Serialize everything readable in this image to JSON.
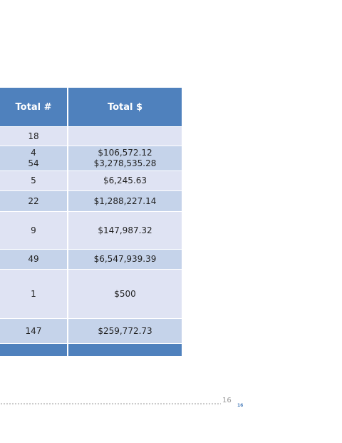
{
  "table": {
    "header": [
      "Total #",
      "Total $"
    ],
    "rows": [
      [
        "18"
      ],
      [
        "4\n54",
        "$106,572.12\n$3,278,535.28"
      ],
      [
        "5",
        "$6,245.63"
      ],
      [
        "22",
        "$1,288,227.14"
      ],
      [
        "9",
        "$147,987.32"
      ],
      [
        "49",
        "$6,547,939.39"
      ],
      [
        "1",
        "$500"
      ],
      [
        "147",
        "$259,772.73"
      ]
    ]
  },
  "footer": {
    "page_number": "16",
    "page_badge": "16"
  }
}
